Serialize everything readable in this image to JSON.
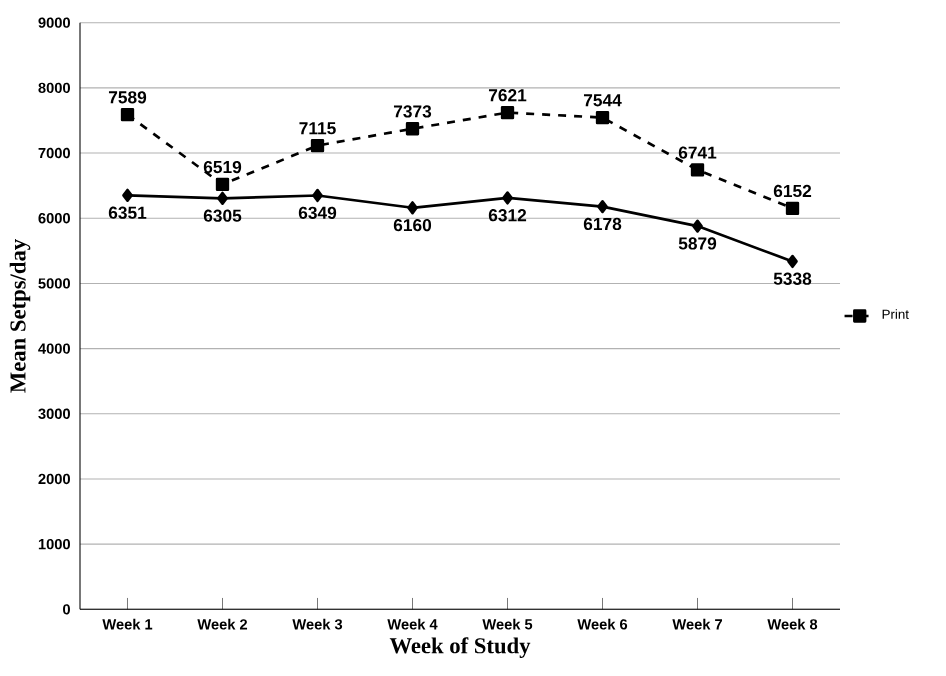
{
  "chart_data": {
    "type": "line",
    "xlabel": "Week of Study",
    "ylabel": "Mean Setps/day",
    "categories": [
      "Week 1",
      "Week 2",
      "Week 3",
      "Week 4",
      "Week 5",
      "Week 6",
      "Week 7",
      "Week 8"
    ],
    "series": [
      {
        "color": "#000000",
        "marker": "diamond",
        "line_style": "solid",
        "values": [
          6351,
          6305,
          6349,
          6160,
          6312,
          6178,
          5879,
          5338
        ]
      },
      {
        "name": "Print",
        "color": "#000000",
        "marker": "square",
        "line_style": "dashed",
        "values": [
          7589,
          6519,
          7115,
          7373,
          7621,
          7544,
          6741,
          6152
        ]
      }
    ],
    "ylim": [
      0,
      9000
    ],
    "yticks": [
      0,
      1000,
      2000,
      3000,
      4000,
      5000,
      6000,
      7000,
      8000,
      9000
    ],
    "grid": "y",
    "legend": "right",
    "data_labels": true
  }
}
